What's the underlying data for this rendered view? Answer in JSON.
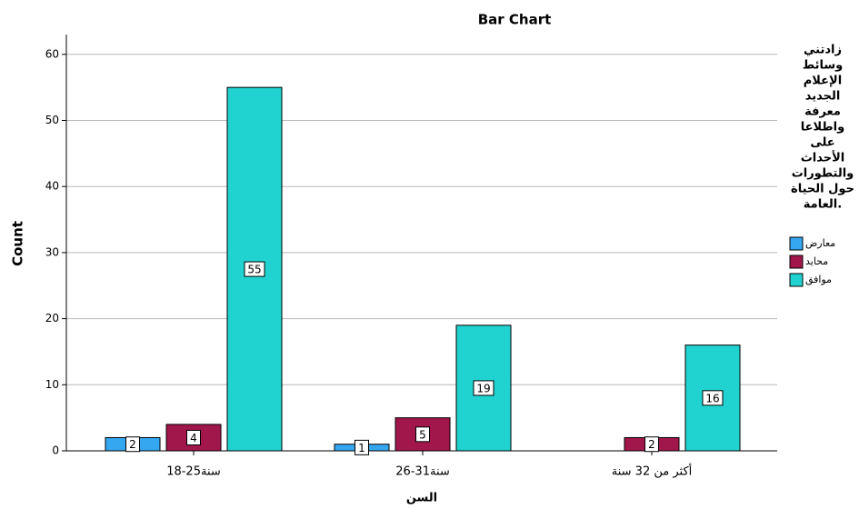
{
  "chart_data": {
    "type": "bar",
    "title": "Bar Chart",
    "x_label": "السن",
    "y_label": "Count",
    "categories": [
      "18-25سنة",
      "26-31سنة",
      "أكثر من 32 سنة"
    ],
    "series": [
      {
        "name": "معارض",
        "color": "#35a7f0",
        "values": [
          2,
          1,
          null
        ]
      },
      {
        "name": "محايد",
        "color": "#a2174b",
        "values": [
          4,
          5,
          2
        ]
      },
      {
        "name": "موافق",
        "color": "#21d3d0",
        "values": [
          55,
          19,
          16
        ]
      }
    ],
    "legend_title": [
      "زادتني",
      "وسائط",
      "الإعلام",
      "الجديد",
      "معرفة",
      "واطلاعا",
      "على",
      "الأحداث",
      "والتطورات",
      "حول الحياة",
      "العامة."
    ],
    "ylim": [
      0,
      63
    ],
    "yticks": [
      0,
      10,
      20,
      30,
      40,
      50,
      60
    ],
    "grid": true,
    "legend": "right"
  }
}
